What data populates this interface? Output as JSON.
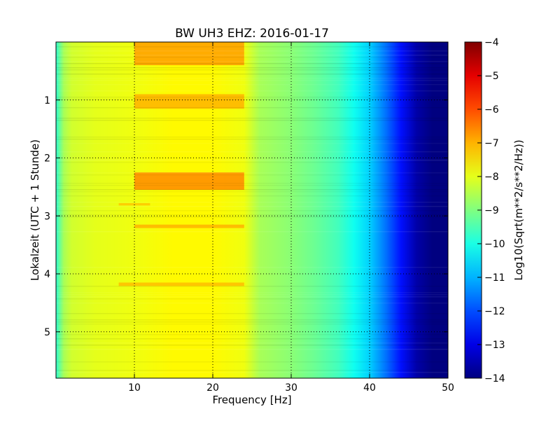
{
  "chart_data": {
    "type": "heatmap",
    "title": "BW UH3 EHZ: 2016-01-17",
    "xlabel": "Frequency [Hz]",
    "ylabel": "Lokalzeit (UTC + 1 Stunde)",
    "xlim": [
      0,
      50
    ],
    "ylim": [
      5.8,
      0
    ],
    "x_ticks": [
      10,
      20,
      30,
      40,
      50
    ],
    "x_tick_labels": [
      "10",
      "20",
      "30",
      "40",
      "50"
    ],
    "y_ticks": [
      1,
      2,
      3,
      4,
      5
    ],
    "y_tick_labels": [
      "1",
      "2",
      "3",
      "4",
      "5"
    ],
    "grid": true,
    "colormap": "jet",
    "colorbar": {
      "label": "Log10(Sqrt(m**2/s**2/Hz))",
      "range": [
        -14,
        -4
      ],
      "ticks": [
        -4,
        -5,
        -6,
        -7,
        -8,
        -9,
        -10,
        -11,
        -12,
        -13,
        -14
      ],
      "tick_labels": [
        "−4",
        "−5",
        "−6",
        "−7",
        "−8",
        "−9",
        "−10",
        "−11",
        "−12",
        "−13",
        "−14"
      ]
    },
    "freq_profile": {
      "frequency_hz": [
        0,
        1,
        2,
        5,
        10,
        15,
        20,
        24,
        26,
        30,
        33,
        36,
        38,
        40,
        42,
        44,
        46,
        48,
        50
      ],
      "log_psd": [
        -9.8,
        -8.6,
        -8.2,
        -8.0,
        -7.9,
        -7.7,
        -7.7,
        -7.9,
        -8.6,
        -8.9,
        -9.2,
        -9.6,
        -10.1,
        -10.7,
        -11.6,
        -12.6,
        -13.6,
        -14.0,
        -14.0
      ]
    },
    "high_noise_bands": [
      {
        "time_h_start": 0.0,
        "time_h_end": 0.4,
        "freq_hz_start": 10,
        "freq_hz_end": 24,
        "log_psd": -6.8
      },
      {
        "time_h_start": 0.9,
        "time_h_end": 1.15,
        "freq_hz_start": 10,
        "freq_hz_end": 24,
        "log_psd": -7.0
      },
      {
        "time_h_start": 2.25,
        "time_h_end": 2.55,
        "freq_hz_start": 10,
        "freq_hz_end": 24,
        "log_psd": -6.6
      },
      {
        "time_h_start": 2.78,
        "time_h_end": 2.82,
        "freq_hz_start": 8,
        "freq_hz_end": 12,
        "log_psd": -7.2
      },
      {
        "time_h_start": 3.15,
        "time_h_end": 3.21,
        "freq_hz_start": 10,
        "freq_hz_end": 24,
        "log_psd": -7.0
      },
      {
        "time_h_start": 4.15,
        "time_h_end": 4.21,
        "freq_hz_start": 8,
        "freq_hz_end": 24,
        "log_psd": -7.1
      }
    ]
  }
}
